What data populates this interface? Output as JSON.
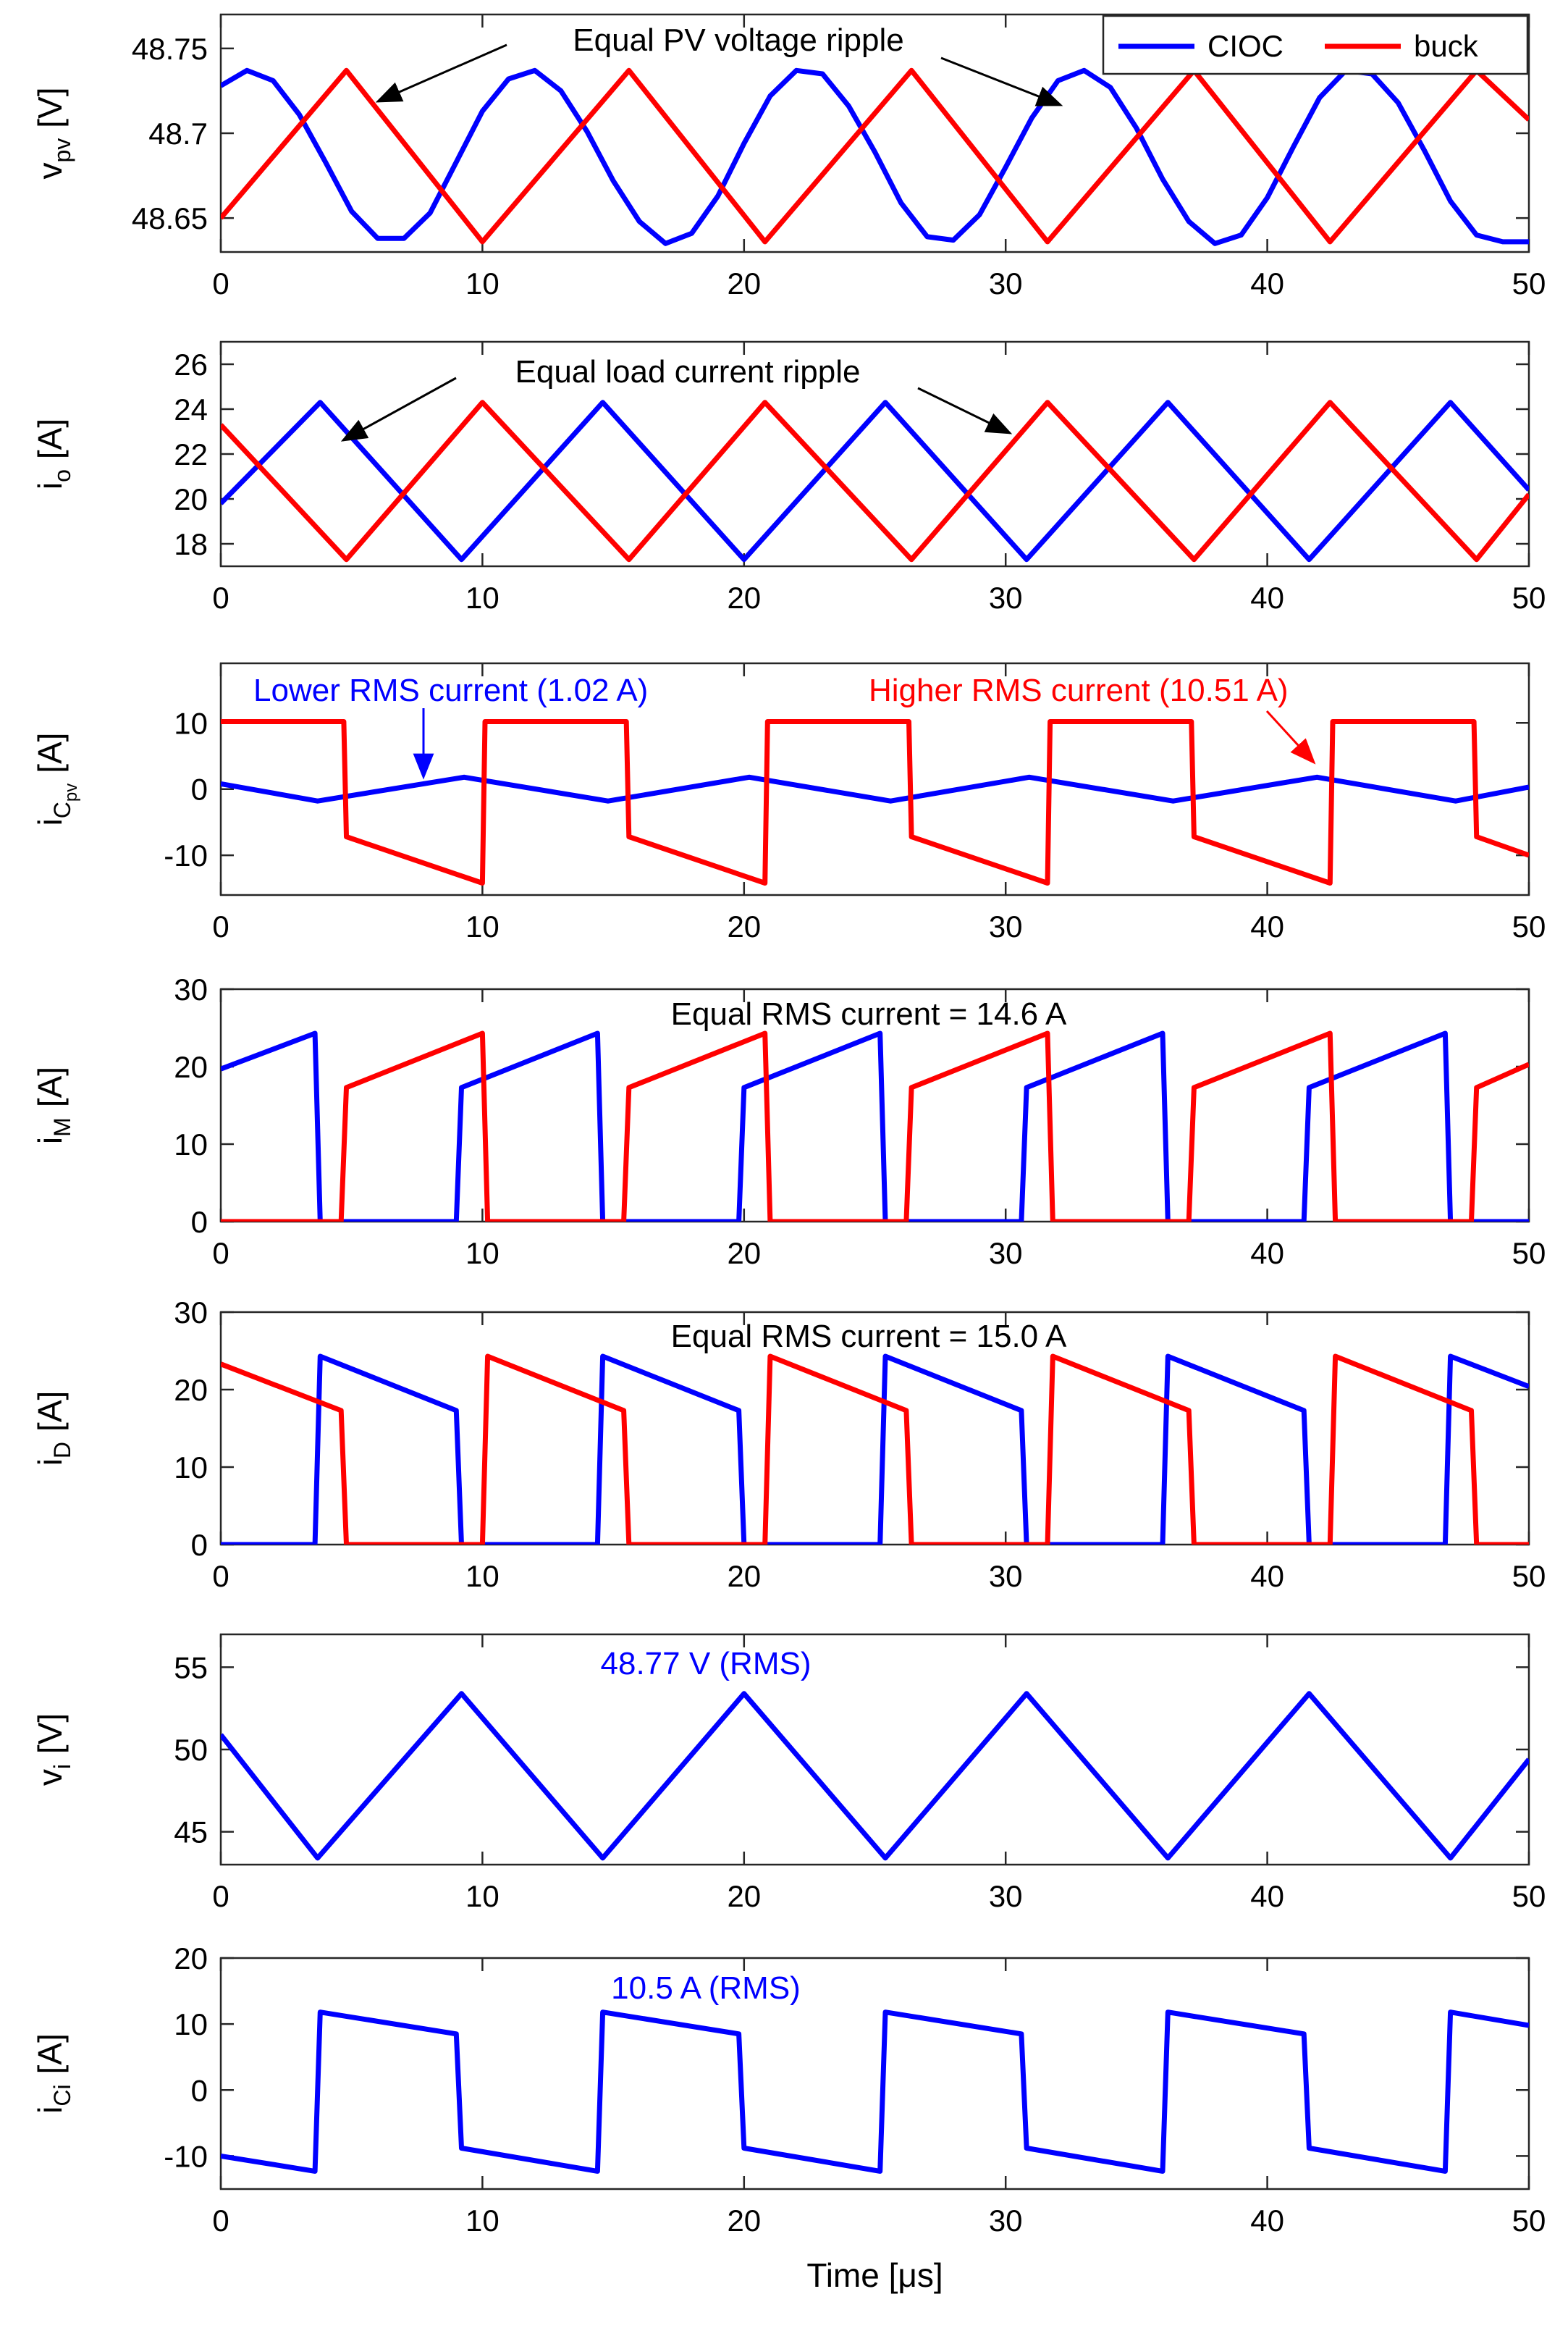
{
  "chart_data": [
    {
      "type": "line",
      "key": "vpv",
      "ylabel_main": "v",
      "ylabel_sub": "pv",
      "ylabel_unit": "[V]",
      "xlim": [
        0,
        50
      ],
      "ylim": [
        48.63,
        48.77
      ],
      "yticks": [
        48.65,
        48.7,
        48.75
      ],
      "yticklabels": [
        "48.65",
        "48.7",
        "48.75"
      ],
      "xticks": [
        0,
        10,
        20,
        30,
        40,
        50
      ],
      "xticklabels": [
        "0",
        "10",
        "20",
        "30",
        "40",
        "50"
      ],
      "legend": {
        "placement": "top-right",
        "items": [
          "CIOC",
          "buck"
        ]
      },
      "series": [
        {
          "name": "CIOC",
          "color": "#0000ff",
          "x": [
            0,
            1,
            2,
            3,
            4,
            5,
            6,
            7,
            8,
            9,
            10,
            11,
            12,
            13,
            14,
            15,
            16,
            17,
            18,
            19,
            20,
            21,
            22,
            23,
            24,
            25,
            26,
            27,
            28,
            29,
            30,
            31,
            32,
            33,
            34,
            35,
            36,
            37,
            38,
            39,
            40,
            41,
            42,
            43,
            44,
            45,
            46,
            47,
            48,
            49,
            50
          ],
          "y": [
            48.728,
            48.737,
            48.731,
            48.711,
            48.683,
            48.654,
            48.638,
            48.638,
            48.653,
            48.683,
            48.713,
            48.732,
            48.737,
            48.725,
            48.701,
            48.672,
            48.648,
            48.635,
            48.641,
            48.663,
            48.694,
            48.722,
            48.737,
            48.735,
            48.716,
            48.689,
            48.659,
            48.639,
            48.637,
            48.652,
            48.68,
            48.709,
            48.731,
            48.737,
            48.727,
            48.703,
            48.673,
            48.648,
            48.635,
            48.64,
            48.662,
            48.692,
            48.721,
            48.737,
            48.735,
            48.718,
            48.69,
            48.66,
            48.64,
            48.636,
            48.636
          ]
        },
        {
          "name": "buck",
          "color": "#ff0000",
          "x": [
            0,
            4.8,
            10,
            15.6,
            20.8,
            26.4,
            31.6,
            37.2,
            42.4,
            48,
            50
          ],
          "y": [
            48.65,
            48.737,
            48.636,
            48.737,
            48.636,
            48.737,
            48.636,
            48.737,
            48.636,
            48.737,
            48.708
          ]
        }
      ],
      "annotations": [
        {
          "text": "Equal PV voltage ripple",
          "color": "#000000"
        }
      ]
    },
    {
      "type": "line",
      "key": "io",
      "ylabel_main": "i",
      "ylabel_sub": "o",
      "ylabel_unit": "[A]",
      "xlim": [
        0,
        50
      ],
      "ylim": [
        17,
        27
      ],
      "yticks": [
        18,
        20,
        22,
        24,
        26
      ],
      "yticklabels": [
        "18",
        "20",
        "22",
        "24",
        "26"
      ],
      "xticks": [
        0,
        10,
        20,
        30,
        40,
        50
      ],
      "xticklabels": [
        "0",
        "10",
        "20",
        "30",
        "40",
        "50"
      ],
      "series": [
        {
          "name": "CIOC",
          "color": "#0000ff",
          "x": [
            0,
            3.8,
            9.2,
            14.6,
            20,
            25.4,
            30.8,
            36.2,
            41.6,
            47,
            50
          ],
          "y": [
            19.8,
            24.3,
            17.3,
            24.3,
            17.3,
            24.3,
            17.3,
            24.3,
            17.3,
            24.3,
            20.4
          ]
        },
        {
          "name": "buck",
          "color": "#ff0000",
          "x": [
            0,
            4.8,
            10,
            15.6,
            20.8,
            26.4,
            31.6,
            37.2,
            42.4,
            48,
            50
          ],
          "y": [
            23.3,
            17.3,
            24.3,
            17.3,
            24.3,
            17.3,
            24.3,
            17.3,
            24.3,
            17.3,
            20.2
          ]
        }
      ],
      "annotations": [
        {
          "text": "Equal load current ripple",
          "color": "#000000"
        }
      ]
    },
    {
      "type": "line",
      "key": "icpv",
      "ylabel_main": "i",
      "ylabel_sub": "C",
      "ylabel_subsub": "pv",
      "ylabel_unit": "[A]",
      "xlim": [
        0,
        50
      ],
      "ylim": [
        -16,
        19
      ],
      "yticks": [
        -10,
        0,
        10
      ],
      "yticklabels": [
        "-10",
        "0",
        "10"
      ],
      "xticks": [
        0,
        10,
        20,
        30,
        40,
        50
      ],
      "xticklabels": [
        "0",
        "10",
        "20",
        "30",
        "40",
        "50"
      ],
      "series": [
        {
          "name": "CIOC",
          "color": "#0000ff",
          "x": [
            0,
            3.7,
            9.3,
            14.8,
            20.2,
            25.6,
            30.9,
            36.4,
            41.9,
            47.2,
            50
          ],
          "y": [
            0.8,
            -1.8,
            1.8,
            -1.8,
            1.8,
            -1.8,
            1.8,
            -1.8,
            1.8,
            -1.8,
            0.3
          ]
        },
        {
          "name": "buck",
          "color": "#ff0000",
          "x": [
            0,
            4.7,
            4.8,
            10,
            10.1,
            15.5,
            15.6,
            20.8,
            20.9,
            26.3,
            26.4,
            31.6,
            31.7,
            37.1,
            37.2,
            42.4,
            42.5,
            47.9,
            48,
            50
          ],
          "y": [
            10.2,
            10.2,
            -7.2,
            -14.2,
            10.2,
            10.2,
            -7.2,
            -14.2,
            10.2,
            10.2,
            -7.2,
            -14.2,
            10.2,
            10.2,
            -7.2,
            -14.2,
            10.2,
            10.2,
            -7.2,
            -10
          ]
        }
      ],
      "annotations": [
        {
          "text": "Lower RMS current (1.02 A)",
          "color": "#0000ff"
        },
        {
          "text": "Higher RMS current (10.51 A)",
          "color": "#ff0000"
        }
      ]
    },
    {
      "type": "line",
      "key": "im",
      "ylabel_main": "i",
      "ylabel_sub": "M",
      "ylabel_unit": "[A]",
      "xlim": [
        0,
        50
      ],
      "ylim": [
        0,
        30
      ],
      "yticks": [
        0,
        10,
        20,
        30
      ],
      "yticklabels": [
        "0",
        "10",
        "20",
        "30"
      ],
      "xticks": [
        0,
        10,
        20,
        30,
        40,
        50
      ],
      "xticklabels": [
        "0",
        "10",
        "20",
        "30",
        "40",
        "50"
      ],
      "series": [
        {
          "name": "CIOC",
          "color": "#0000ff",
          "x": [
            0,
            3.6,
            3.8,
            9.0,
            9.2,
            14.4,
            14.6,
            19.8,
            20.0,
            25.2,
            25.4,
            30.6,
            30.8,
            36.0,
            36.2,
            41.4,
            41.6,
            46.8,
            47.0,
            50
          ],
          "y": [
            19.7,
            24.3,
            0,
            0,
            17.3,
            24.3,
            0,
            0,
            17.3,
            24.3,
            0,
            0,
            17.3,
            24.3,
            0,
            0,
            17.3,
            24.3,
            0,
            0
          ]
        },
        {
          "name": "buck",
          "color": "#ff0000",
          "x": [
            0,
            4.6,
            4.8,
            10.0,
            10.2,
            15.4,
            15.6,
            20.8,
            21.0,
            26.2,
            26.4,
            31.6,
            31.8,
            37.0,
            37.2,
            42.4,
            42.6,
            47.8,
            48.0,
            50
          ],
          "y": [
            0,
            0,
            17.3,
            24.3,
            0,
            0,
            17.3,
            24.3,
            0,
            0,
            17.3,
            24.3,
            0,
            0,
            17.3,
            24.3,
            0,
            0,
            17.3,
            20.3
          ]
        }
      ],
      "annotations": [
        {
          "text": "Equal RMS current = 14.6 A",
          "color": "#000000"
        }
      ]
    },
    {
      "type": "line",
      "key": "id",
      "ylabel_main": "i",
      "ylabel_sub": "D",
      "ylabel_unit": "[A]",
      "xlim": [
        0,
        50
      ],
      "ylim": [
        0,
        30
      ],
      "yticks": [
        0,
        10,
        20,
        30
      ],
      "yticklabels": [
        "0",
        "10",
        "20",
        "30"
      ],
      "xticks": [
        0,
        10,
        20,
        30,
        40,
        50
      ],
      "xticklabels": [
        "0",
        "10",
        "20",
        "30",
        "40",
        "50"
      ],
      "series": [
        {
          "name": "CIOC",
          "color": "#0000ff",
          "x": [
            0,
            3.6,
            3.8,
            9.0,
            9.2,
            14.4,
            14.6,
            19.8,
            20.0,
            25.2,
            25.4,
            30.6,
            30.8,
            36.0,
            36.2,
            41.4,
            41.6,
            46.8,
            47.0,
            50
          ],
          "y": [
            0,
            0,
            24.3,
            17.3,
            0,
            0,
            24.3,
            17.3,
            0,
            0,
            24.3,
            17.3,
            0,
            0,
            24.3,
            17.3,
            0,
            0,
            24.3,
            20.4
          ]
        },
        {
          "name": "buck",
          "color": "#ff0000",
          "x": [
            0,
            4.6,
            4.8,
            10.0,
            10.2,
            15.4,
            15.6,
            20.8,
            21.0,
            26.2,
            26.4,
            31.6,
            31.8,
            37.0,
            37.2,
            42.4,
            42.6,
            47.8,
            48.0,
            50
          ],
          "y": [
            23.3,
            17.3,
            0,
            0,
            24.3,
            17.3,
            0,
            0,
            24.3,
            17.3,
            0,
            0,
            24.3,
            17.3,
            0,
            0,
            24.3,
            17.3,
            0,
            0
          ]
        }
      ],
      "annotations": [
        {
          "text": "Equal RMS current = 15.0 A",
          "color": "#000000"
        }
      ]
    },
    {
      "type": "line",
      "key": "vi",
      "ylabel_main": "v",
      "ylabel_sub": "i",
      "ylabel_unit": "[V]",
      "xlim": [
        0,
        50
      ],
      "ylim": [
        43,
        57
      ],
      "yticks": [
        45,
        50,
        55
      ],
      "yticklabels": [
        "45",
        "50",
        "55"
      ],
      "xticks": [
        0,
        10,
        20,
        30,
        40,
        50
      ],
      "xticklabels": [
        "0",
        "10",
        "20",
        "30",
        "40",
        "50"
      ],
      "series": [
        {
          "name": "CIOC",
          "color": "#0000ff",
          "x": [
            0,
            3.7,
            9.2,
            14.6,
            20.0,
            25.4,
            30.8,
            36.2,
            41.6,
            47.0,
            50
          ],
          "y": [
            50.9,
            43.4,
            53.4,
            43.4,
            53.4,
            43.4,
            53.4,
            43.4,
            53.4,
            43.4,
            49.4
          ]
        }
      ],
      "annotations": [
        {
          "text": "48.77 V (RMS)",
          "color": "#0000ff"
        }
      ]
    },
    {
      "type": "line",
      "key": "ici",
      "ylabel_main": "i",
      "ylabel_sub": "Ci",
      "ylabel_unit": "[A]",
      "xlabel": "Time [μs]",
      "xlim": [
        0,
        50
      ],
      "ylim": [
        -15,
        20
      ],
      "yticks": [
        -10,
        0,
        10,
        20
      ],
      "yticklabels": [
        "-10",
        "0",
        "10",
        "20"
      ],
      "xticks": [
        0,
        10,
        20,
        30,
        40,
        50
      ],
      "xticklabels": [
        "0",
        "10",
        "20",
        "30",
        "40",
        "50"
      ],
      "series": [
        {
          "name": "CIOC",
          "color": "#0000ff",
          "x": [
            0,
            3.6,
            3.8,
            9.0,
            9.2,
            14.4,
            14.6,
            19.8,
            20.0,
            25.2,
            25.4,
            30.6,
            30.8,
            36.0,
            36.2,
            41.4,
            41.6,
            46.8,
            47.0,
            50
          ],
          "y": [
            -10.0,
            -12.3,
            11.8,
            8.5,
            -8.8,
            -12.3,
            11.8,
            8.5,
            -8.8,
            -12.3,
            11.8,
            8.5,
            -8.8,
            -12.3,
            11.8,
            8.5,
            -8.8,
            -12.3,
            11.8,
            9.8
          ]
        }
      ],
      "annotations": [
        {
          "text": "10.5 A (RMS)",
          "color": "#0000ff"
        }
      ]
    }
  ]
}
